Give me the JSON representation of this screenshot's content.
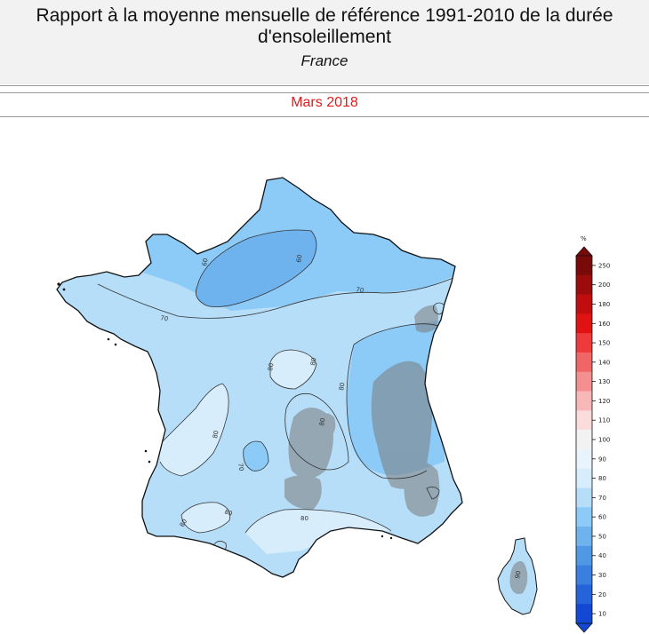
{
  "header": {
    "title": "Rapport à la moyenne mensuelle de référence 1991-2010 de la durée d'ensoleillement",
    "subtitle": "France",
    "period": "Mars 2018"
  },
  "map": {
    "region": "France",
    "isoline_labels": [
      "60",
      "60",
      "70",
      "70",
      "80",
      "80",
      "80",
      "70",
      "80",
      "80",
      "80",
      "80",
      "80",
      "90"
    ],
    "colors": {
      "under_60": "#6fb3ee",
      "60_70": "#8ccaf7",
      "70_80": "#b6def9",
      "80_90": "#d8edfb",
      "relief_shading": "#7b7b7b"
    }
  },
  "legend": {
    "unit": "%",
    "ticks": [
      "250",
      "200",
      "180",
      "160",
      "150",
      "140",
      "130",
      "120",
      "110",
      "100",
      "90",
      "80",
      "70",
      "60",
      "50",
      "40",
      "30",
      "20",
      "10"
    ],
    "colors": [
      "#7a0a0a",
      "#9c0c0c",
      "#c00e0e",
      "#e01212",
      "#ee3a3a",
      "#f06565",
      "#f48f8f",
      "#f8b8b8",
      "#fbdcdc",
      "#f2f2f2",
      "#e9f3fc",
      "#d8edfb",
      "#b6def9",
      "#8ccaf7",
      "#6fb3ee",
      "#4f98e6",
      "#3a7fe0",
      "#2463d9",
      "#1348d4"
    ]
  }
}
